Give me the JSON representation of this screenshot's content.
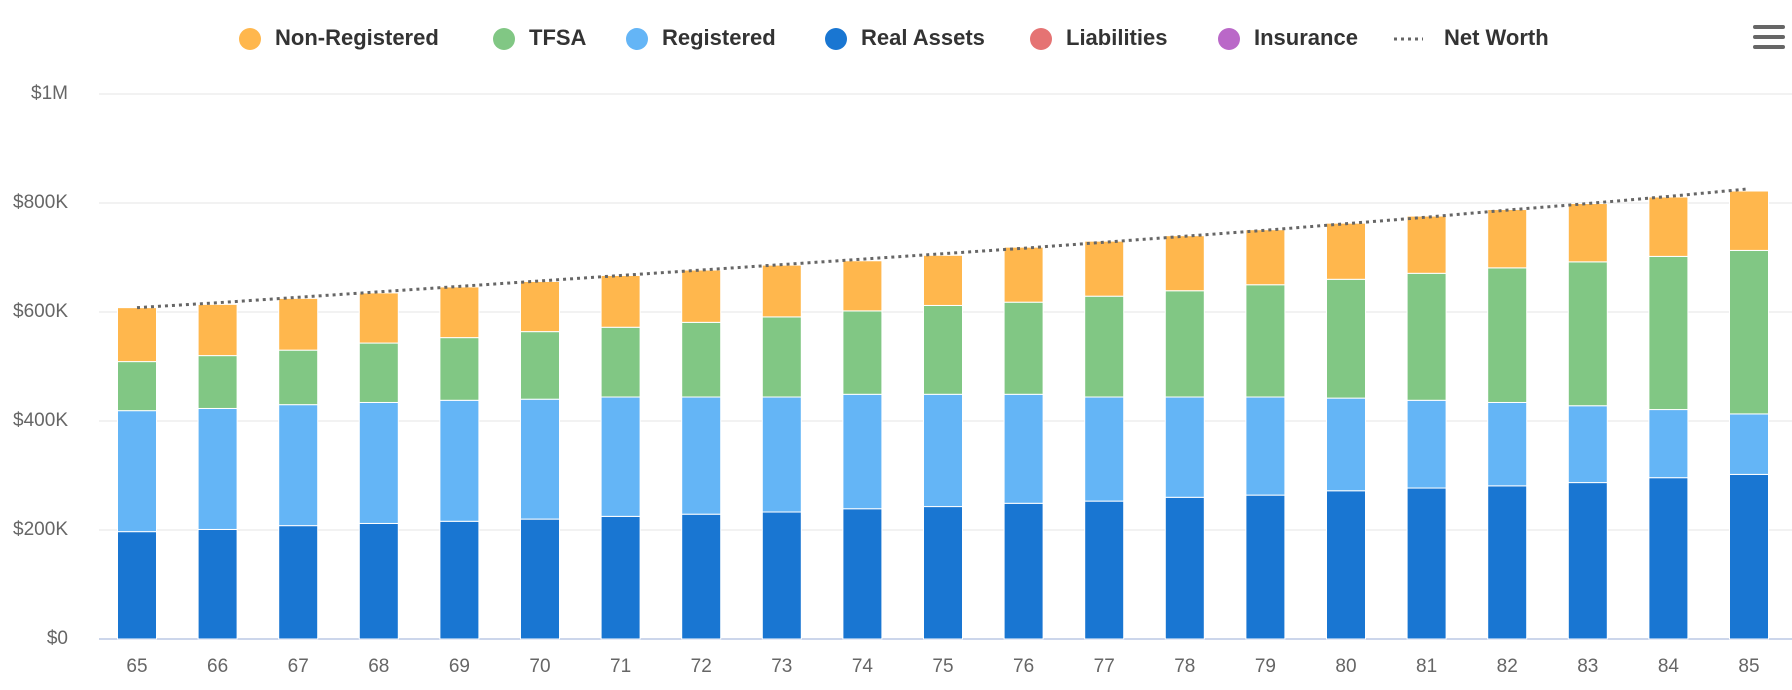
{
  "chart_data": {
    "type": "stacked-bar",
    "categories": [
      "65",
      "66",
      "67",
      "68",
      "69",
      "70",
      "71",
      "72",
      "73",
      "74",
      "75",
      "76",
      "77",
      "78",
      "79",
      "80",
      "81",
      "82",
      "83",
      "84",
      "85"
    ],
    "series": [
      {
        "name": "Non-Registered",
        "color": "#ffb74d",
        "values": [
          99000,
          94000,
          95000,
          92000,
          93000,
          92000,
          95000,
          96000,
          95000,
          92000,
          92000,
          101000,
          101000,
          101000,
          101000,
          103000,
          105000,
          107000,
          107000,
          109000,
          109000
        ]
      },
      {
        "name": "TFSA",
        "color": "#81c784",
        "values": [
          90000,
          97000,
          100000,
          109000,
          115000,
          124000,
          128000,
          137000,
          147000,
          153000,
          163000,
          169000,
          185000,
          195000,
          206000,
          218000,
          233000,
          247000,
          264000,
          281000,
          300000
        ]
      },
      {
        "name": "Registered",
        "color": "#64b5f6",
        "values": [
          222000,
          222000,
          222000,
          222000,
          222000,
          220000,
          219000,
          215000,
          211000,
          210000,
          206000,
          200000,
          191000,
          184000,
          180000,
          170000,
          161000,
          153000,
          141000,
          125000,
          111000
        ]
      },
      {
        "name": "Real Assets",
        "color": "#1976d2",
        "values": [
          197000,
          201000,
          208000,
          212000,
          216000,
          220000,
          225000,
          229000,
          233000,
          239000,
          243000,
          249000,
          253000,
          260000,
          264000,
          272000,
          277000,
          281000,
          287000,
          296000,
          302000
        ]
      },
      {
        "name": "Liabilities",
        "color": "#e57373",
        "values": [
          null,
          null,
          null,
          null,
          null,
          null,
          null,
          null,
          null,
          null,
          null,
          null,
          null,
          null,
          null,
          null,
          null,
          null,
          null,
          null,
          null
        ]
      },
      {
        "name": "Insurance",
        "color": "#ba68c8",
        "values": [
          null,
          null,
          null,
          null,
          null,
          null,
          null,
          null,
          null,
          null,
          null,
          null,
          null,
          null,
          null,
          null,
          null,
          null,
          null,
          null,
          null
        ]
      },
      {
        "name": "Net Worth",
        "color": "#666666",
        "line": "dotted",
        "values": [
          608000,
          617000,
          627000,
          637000,
          647000,
          657000,
          667000,
          677000,
          687000,
          697000,
          707000,
          717000,
          728000,
          739000,
          750000,
          762000,
          774000,
          787000,
          799000,
          812000,
          826000
        ]
      }
    ],
    "stack_order": [
      "Real Assets",
      "Registered",
      "TFSA",
      "Non-Registered"
    ],
    "ylim": [
      0,
      1000000
    ],
    "yticks": [
      {
        "value": 0,
        "label": "$0"
      },
      {
        "value": 200000,
        "label": "$200K"
      },
      {
        "value": 400000,
        "label": "$400K"
      },
      {
        "value": 600000,
        "label": "$600K"
      },
      {
        "value": 800000,
        "label": "$800K"
      },
      {
        "value": 1000000,
        "label": "$1M"
      }
    ],
    "grid": true,
    "legend": "top"
  }
}
